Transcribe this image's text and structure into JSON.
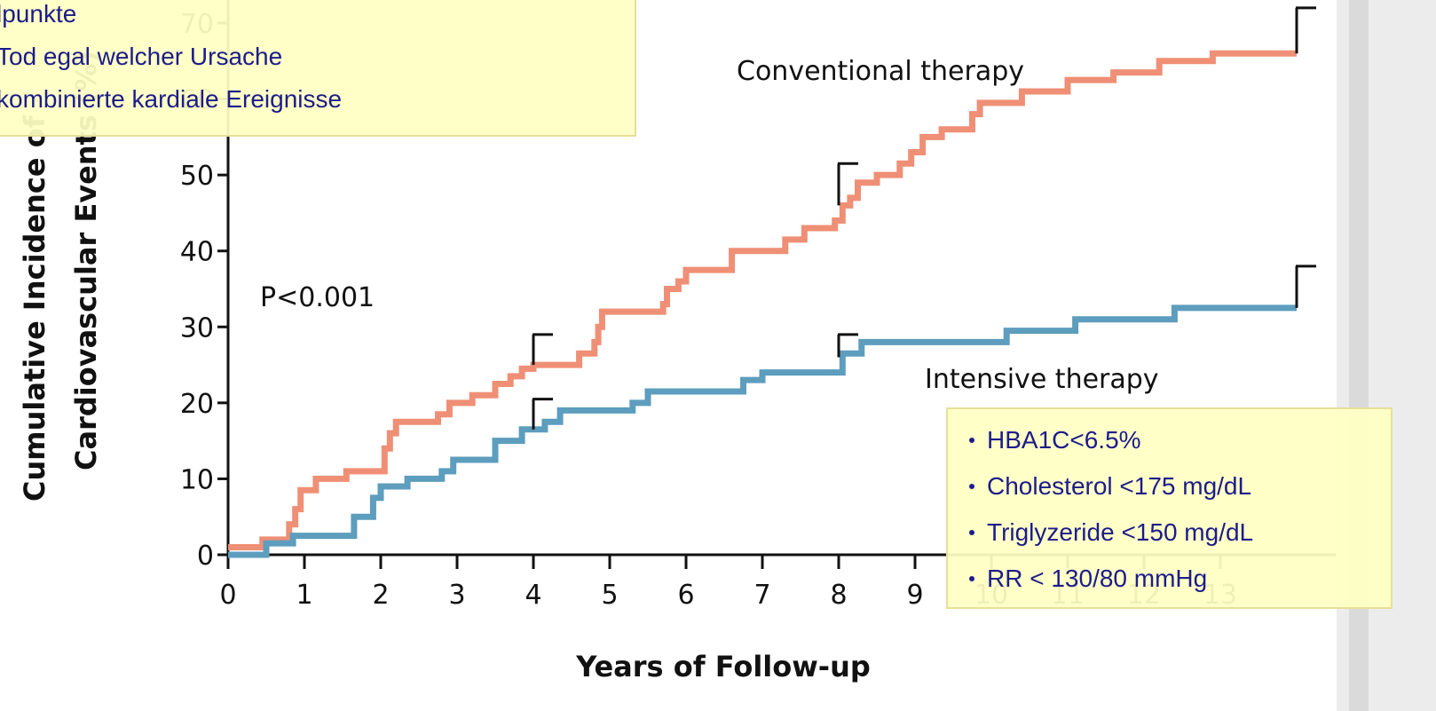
{
  "chart_data": {
    "type": "step",
    "x_label": "Years of Follow-up",
    "y_label": [
      "Cumulative Incidence of",
      "Cardiovascular Events (%)"
    ],
    "annotations": [
      "P<0.001",
      "Conventional therapy",
      "Intensive therapy"
    ],
    "xlim": [
      0,
      14
    ],
    "ylim": [
      0,
      70
    ],
    "xticks": [
      0,
      1,
      2,
      3,
      4,
      5,
      6,
      7,
      8,
      9,
      10,
      11,
      12,
      13
    ],
    "yticks": [
      0,
      10,
      20,
      30,
      40,
      50,
      60,
      70
    ],
    "series": [
      {
        "name": "Conventional therapy",
        "color": "#ef8f75",
        "x": [
          0,
          0.45,
          0.8,
          0.88,
          0.95,
          1.15,
          1.55,
          2.05,
          2.12,
          2.2,
          2.75,
          2.9,
          3.2,
          3.5,
          3.7,
          3.85,
          4.0,
          4.6,
          4.8,
          4.85,
          4.9,
          5.7,
          5.75,
          5.9,
          6.0,
          6.6,
          7.3,
          7.55,
          7.95,
          8.05,
          8.15,
          8.25,
          8.5,
          8.8,
          8.95,
          9.1,
          9.35,
          9.75,
          9.85,
          10.4,
          11.0,
          11.6,
          12.2,
          12.9,
          14
        ],
        "values": [
          1,
          2,
          4,
          6,
          8.5,
          10,
          11,
          14,
          16,
          17.5,
          18.5,
          20,
          21,
          22.5,
          23.5,
          24.5,
          25,
          26.5,
          28,
          30,
          32,
          33,
          35,
          36,
          37.5,
          40,
          41.5,
          43,
          44,
          46,
          47,
          49,
          50,
          51.5,
          53,
          55,
          56,
          58,
          59.5,
          61,
          62.5,
          63.5,
          65,
          66,
          66
        ],
        "error_bars": [
          {
            "x": 4,
            "y": 25,
            "err": 4
          },
          {
            "x": 8,
            "y": 46,
            "err": 5.5
          },
          {
            "x": 14,
            "y": 66,
            "err": 6
          }
        ]
      },
      {
        "name": "Intensive therapy",
        "color": "#5d9dbd",
        "x": [
          0,
          0.5,
          0.85,
          1.65,
          1.9,
          2.0,
          2.35,
          2.8,
          2.95,
          3.5,
          3.85,
          4.15,
          4.35,
          5.3,
          5.5,
          6.75,
          7.0,
          8.05,
          8.3,
          10.2,
          11.1,
          12.4,
          14
        ],
        "values": [
          0,
          1.5,
          2.5,
          5,
          7.5,
          9,
          10,
          11,
          12.5,
          15,
          16.5,
          17.5,
          19,
          20,
          21.5,
          23,
          24,
          26.5,
          28,
          29.5,
          31,
          32.5,
          32.5
        ],
        "error_bars": [
          {
            "x": 4,
            "y": 16.5,
            "err": 4
          },
          {
            "x": 8,
            "y": 26,
            "err": 3
          },
          {
            "x": 14,
            "y": 32.5,
            "err": 5.5
          }
        ]
      }
    ]
  },
  "popup_top": {
    "lines": [
      "lpunkte",
      "Tod egal welcher Ursache",
      "kombinierte kardiale Ereignisse"
    ]
  },
  "popup_bottom": {
    "bullets": [
      "HBA1C<6.5%",
      "Cholesterol <175 mg/dL",
      "Triglyzeride <150 mg/dL",
      "RR < 130/80 mmHg"
    ]
  }
}
